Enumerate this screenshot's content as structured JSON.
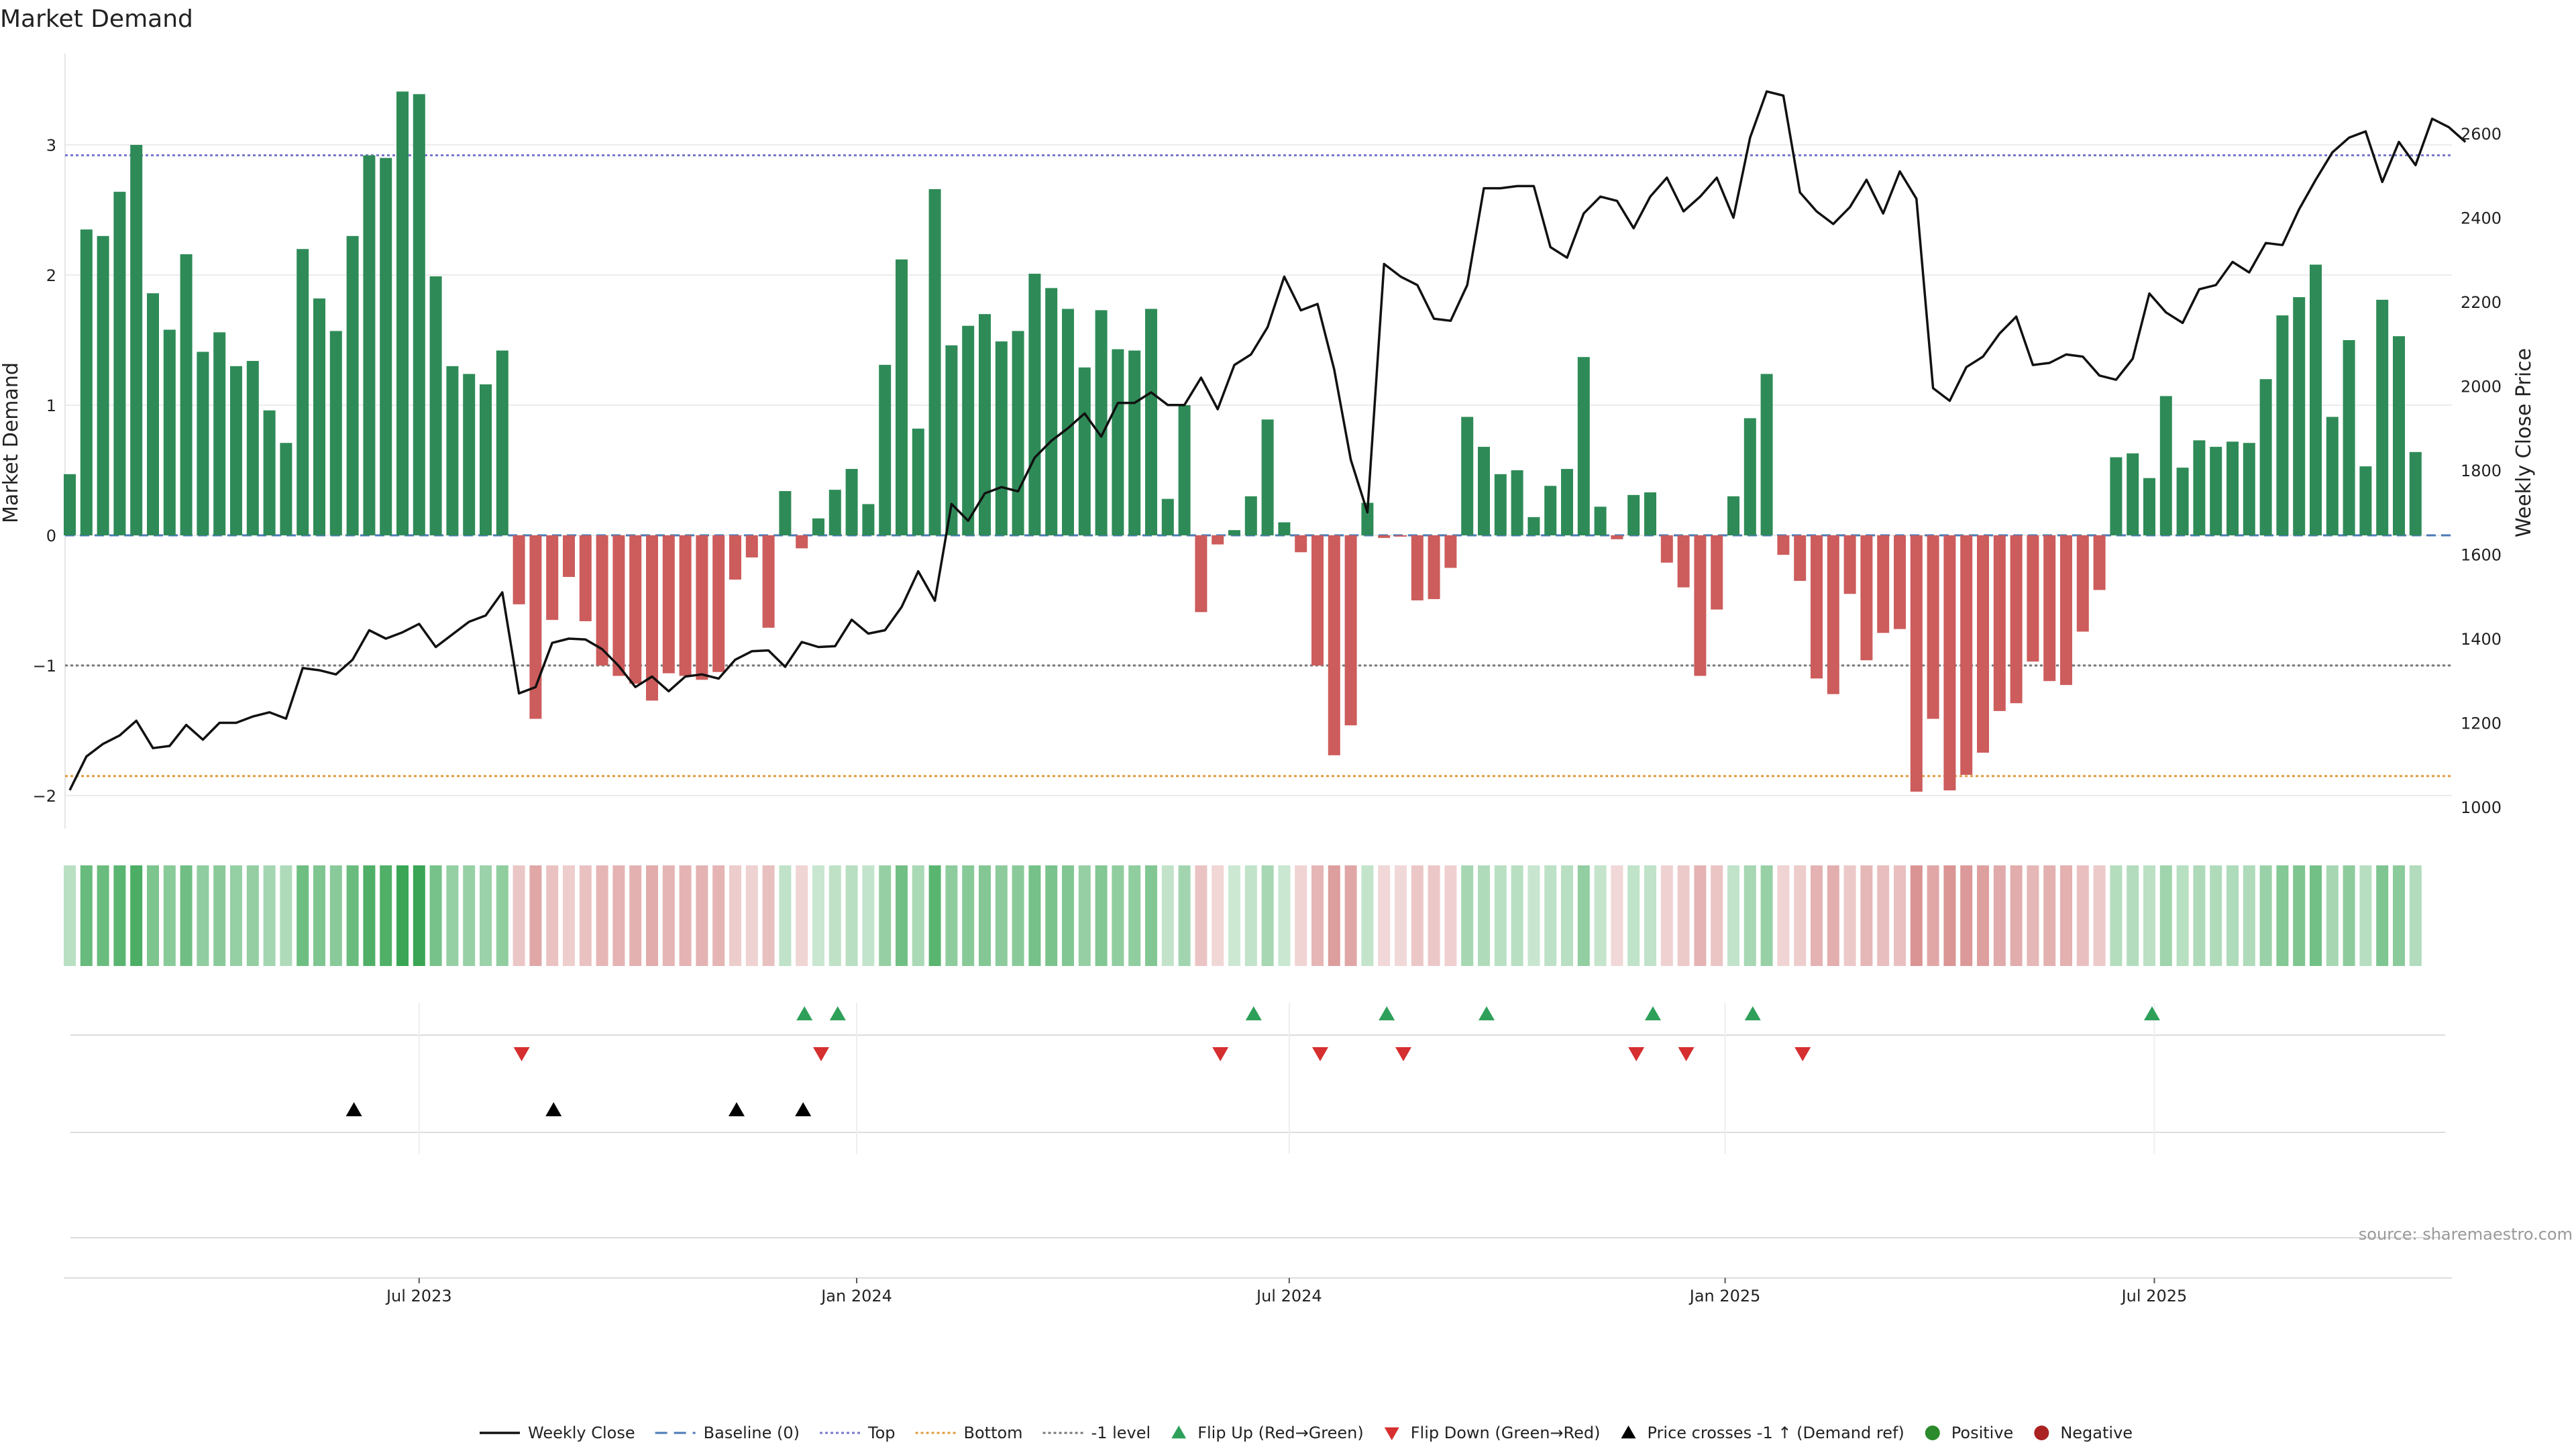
{
  "chart_data": {
    "type": "bar",
    "title": "Market Demand",
    "ylabel": "Market Demand",
    "y2label": "Weekly Close Price",
    "ylim": [
      -2.2,
      3.6
    ],
    "y2lim": [
      1000,
      2700
    ],
    "yticks": [
      -2,
      -1,
      0,
      1,
      2,
      3
    ],
    "ytick_labels": [
      "−2",
      "−1",
      "0",
      "1",
      "2",
      "3"
    ],
    "y2ticks": [
      1000,
      1200,
      1400,
      1600,
      1800,
      2000,
      2200,
      2400,
      2600
    ],
    "y2tick_labels": [
      "1000",
      "1200",
      "1400",
      "1600",
      "1800",
      "2000",
      "2200",
      "2400",
      "2600"
    ],
    "start_date": "2023-02-27",
    "x_tick_labels": [
      {
        "label": "Jul 2023",
        "index": 21
      },
      {
        "label": "Jan 2024",
        "index": 47.3
      },
      {
        "label": "Jul 2024",
        "index": 73.3
      },
      {
        "label": "Jan 2025",
        "index": 99.5
      },
      {
        "label": "Jul 2025",
        "index": 125.3
      }
    ],
    "reference_lines": [
      {
        "name": "Top",
        "value": 2.92,
        "color": "#7777cc",
        "dash": "4,4"
      },
      {
        "name": "Bottom",
        "value": -1.85,
        "color": "#e09a3e",
        "dash": "4,4"
      },
      {
        "name": "-1 level",
        "value": -1,
        "color": "#777777",
        "dash": "4,4"
      },
      {
        "name": "Baseline (0)",
        "value": 0,
        "color": "#4a7ab5",
        "dash": "14,8"
      }
    ],
    "demand": [
      0.47,
      2.35,
      2.3,
      2.64,
      3.0,
      1.86,
      1.58,
      2.16,
      1.41,
      1.56,
      1.3,
      1.34,
      0.96,
      0.71,
      2.2,
      1.82,
      1.57,
      2.3,
      2.92,
      2.9,
      3.41,
      3.39,
      1.99,
      1.3,
      1.24,
      1.16,
      1.42,
      -0.53,
      -1.41,
      -0.65,
      -0.32,
      -0.66,
      -1.0,
      -1.08,
      -1.14,
      -1.27,
      -1.06,
      -1.08,
      -1.11,
      -1.05,
      -0.34,
      -0.17,
      -0.71,
      0.34,
      -0.1,
      0.13,
      0.35,
      0.51,
      0.24,
      1.31,
      2.12,
      0.82,
      2.66,
      1.46,
      1.61,
      1.7,
      1.49,
      1.57,
      2.01,
      1.9,
      1.74,
      1.29,
      1.73,
      1.43,
      1.42,
      1.74,
      0.28,
      1.0,
      -0.59,
      -0.07,
      0.04,
      0.3,
      0.89,
      0.1,
      -0.13,
      -1.0,
      -1.69,
      -1.46,
      0.25,
      -0.02,
      -0.01,
      -0.5,
      -0.49,
      -0.25,
      0.91,
      0.68,
      0.47,
      0.5,
      0.14,
      0.38,
      0.51,
      1.37,
      0.22,
      -0.03,
      0.31,
      0.33,
      -0.21,
      -0.4,
      -1.08,
      -0.57,
      0.3,
      0.9,
      1.24,
      -0.15,
      -0.35,
      -1.1,
      -1.22,
      -0.45,
      -0.96,
      -0.75,
      -0.72,
      -1.97,
      -1.41,
      -1.96,
      -1.84,
      -1.67,
      -1.35,
      -1.29,
      -0.97,
      -1.12,
      -1.15,
      -0.74,
      -0.42,
      0.6,
      0.63,
      0.44,
      1.07,
      0.52,
      0.73,
      0.68,
      0.72,
      0.71,
      1.2,
      1.69,
      1.83,
      2.08,
      0.91,
      1.5,
      0.53,
      1.81,
      1.53,
      0.64
    ],
    "close": [
      1040,
      1120,
      1150,
      1170,
      1205,
      1140,
      1145,
      1195,
      1160,
      1200,
      1200,
      1215,
      1225,
      1210,
      1330,
      1325,
      1315,
      1350,
      1420,
      1400,
      1415,
      1435,
      1380,
      1410,
      1440,
      1455,
      1510,
      1270,
      1285,
      1390,
      1400,
      1398,
      1375,
      1335,
      1285,
      1310,
      1275,
      1310,
      1315,
      1305,
      1350,
      1370,
      1372,
      1333,
      1392,
      1380,
      1382,
      1445,
      1412,
      1420,
      1475,
      1560,
      1490,
      1720,
      1680,
      1745,
      1760,
      1750,
      1830,
      1870,
      1900,
      1935,
      1880,
      1960,
      1960,
      1985,
      1955,
      1955,
      2020,
      1945,
      2050,
      2075,
      2140,
      2260,
      2180,
      2195,
      2040,
      1825,
      1700,
      2290,
      2260,
      2240,
      2160,
      2155,
      2240,
      2470,
      2470,
      2475,
      2475,
      2330,
      2305,
      2410,
      2450,
      2440,
      2375,
      2450,
      2495,
      2415,
      2450,
      2495,
      2400,
      2590,
      2700,
      2690,
      2460,
      2415,
      2385,
      2425,
      2490,
      2410,
      2510,
      2445,
      1995,
      1965,
      2045,
      2070,
      2125,
      2165,
      2050,
      2055,
      2075,
      2070,
      2025,
      2015,
      2065,
      2220,
      2175,
      2150,
      2230,
      2240,
      2295,
      2270,
      2340,
      2335,
      2420,
      2490,
      2555,
      2590,
      2605,
      2485,
      2580,
      2525,
      2635,
      2615,
      2580
    ],
    "flip_up_indices": [
      44,
      46,
      71,
      79,
      85,
      95,
      101,
      125
    ],
    "flip_down_indices": [
      27,
      45,
      69,
      75,
      80,
      94,
      97,
      104
    ],
    "price_cross_indices": [
      17,
      29,
      40,
      44
    ],
    "legend": [
      {
        "label": "Weekly Close",
        "kind": "line",
        "color": "#111111"
      },
      {
        "label": "Baseline (0)",
        "kind": "dash",
        "color": "#4a7ab5"
      },
      {
        "label": "Top",
        "kind": "dot",
        "color": "#7777cc"
      },
      {
        "label": "Bottom",
        "kind": "dot",
        "color": "#e09a3e"
      },
      {
        "label": "-1 level",
        "kind": "dot",
        "color": "#777777"
      },
      {
        "label": "Flip Up (Red→Green)",
        "kind": "tri-up",
        "color": "#2ea05a"
      },
      {
        "label": "Flip Down (Green→Red)",
        "kind": "tri-down",
        "color": "#d62f2f"
      },
      {
        "label": "Price crosses -1 ↑ (Demand ref)",
        "kind": "tri-up",
        "color": "#000000"
      },
      {
        "label": "Positive",
        "kind": "circle",
        "color": "#2b8a2b"
      },
      {
        "label": "Negative",
        "kind": "circle",
        "color": "#aa2222"
      }
    ],
    "source": "source: sharemaestro.com"
  },
  "colors": {
    "positive_bar": "#2e8b57",
    "negative_bar": "#cd5c5c",
    "close_line": "#111111",
    "heat_green": "#3aa655",
    "heat_red": "#c96363",
    "grid": "#ececec",
    "flip_up": "#2ea05a",
    "flip_down": "#d62f2f",
    "cross": "#000000"
  }
}
